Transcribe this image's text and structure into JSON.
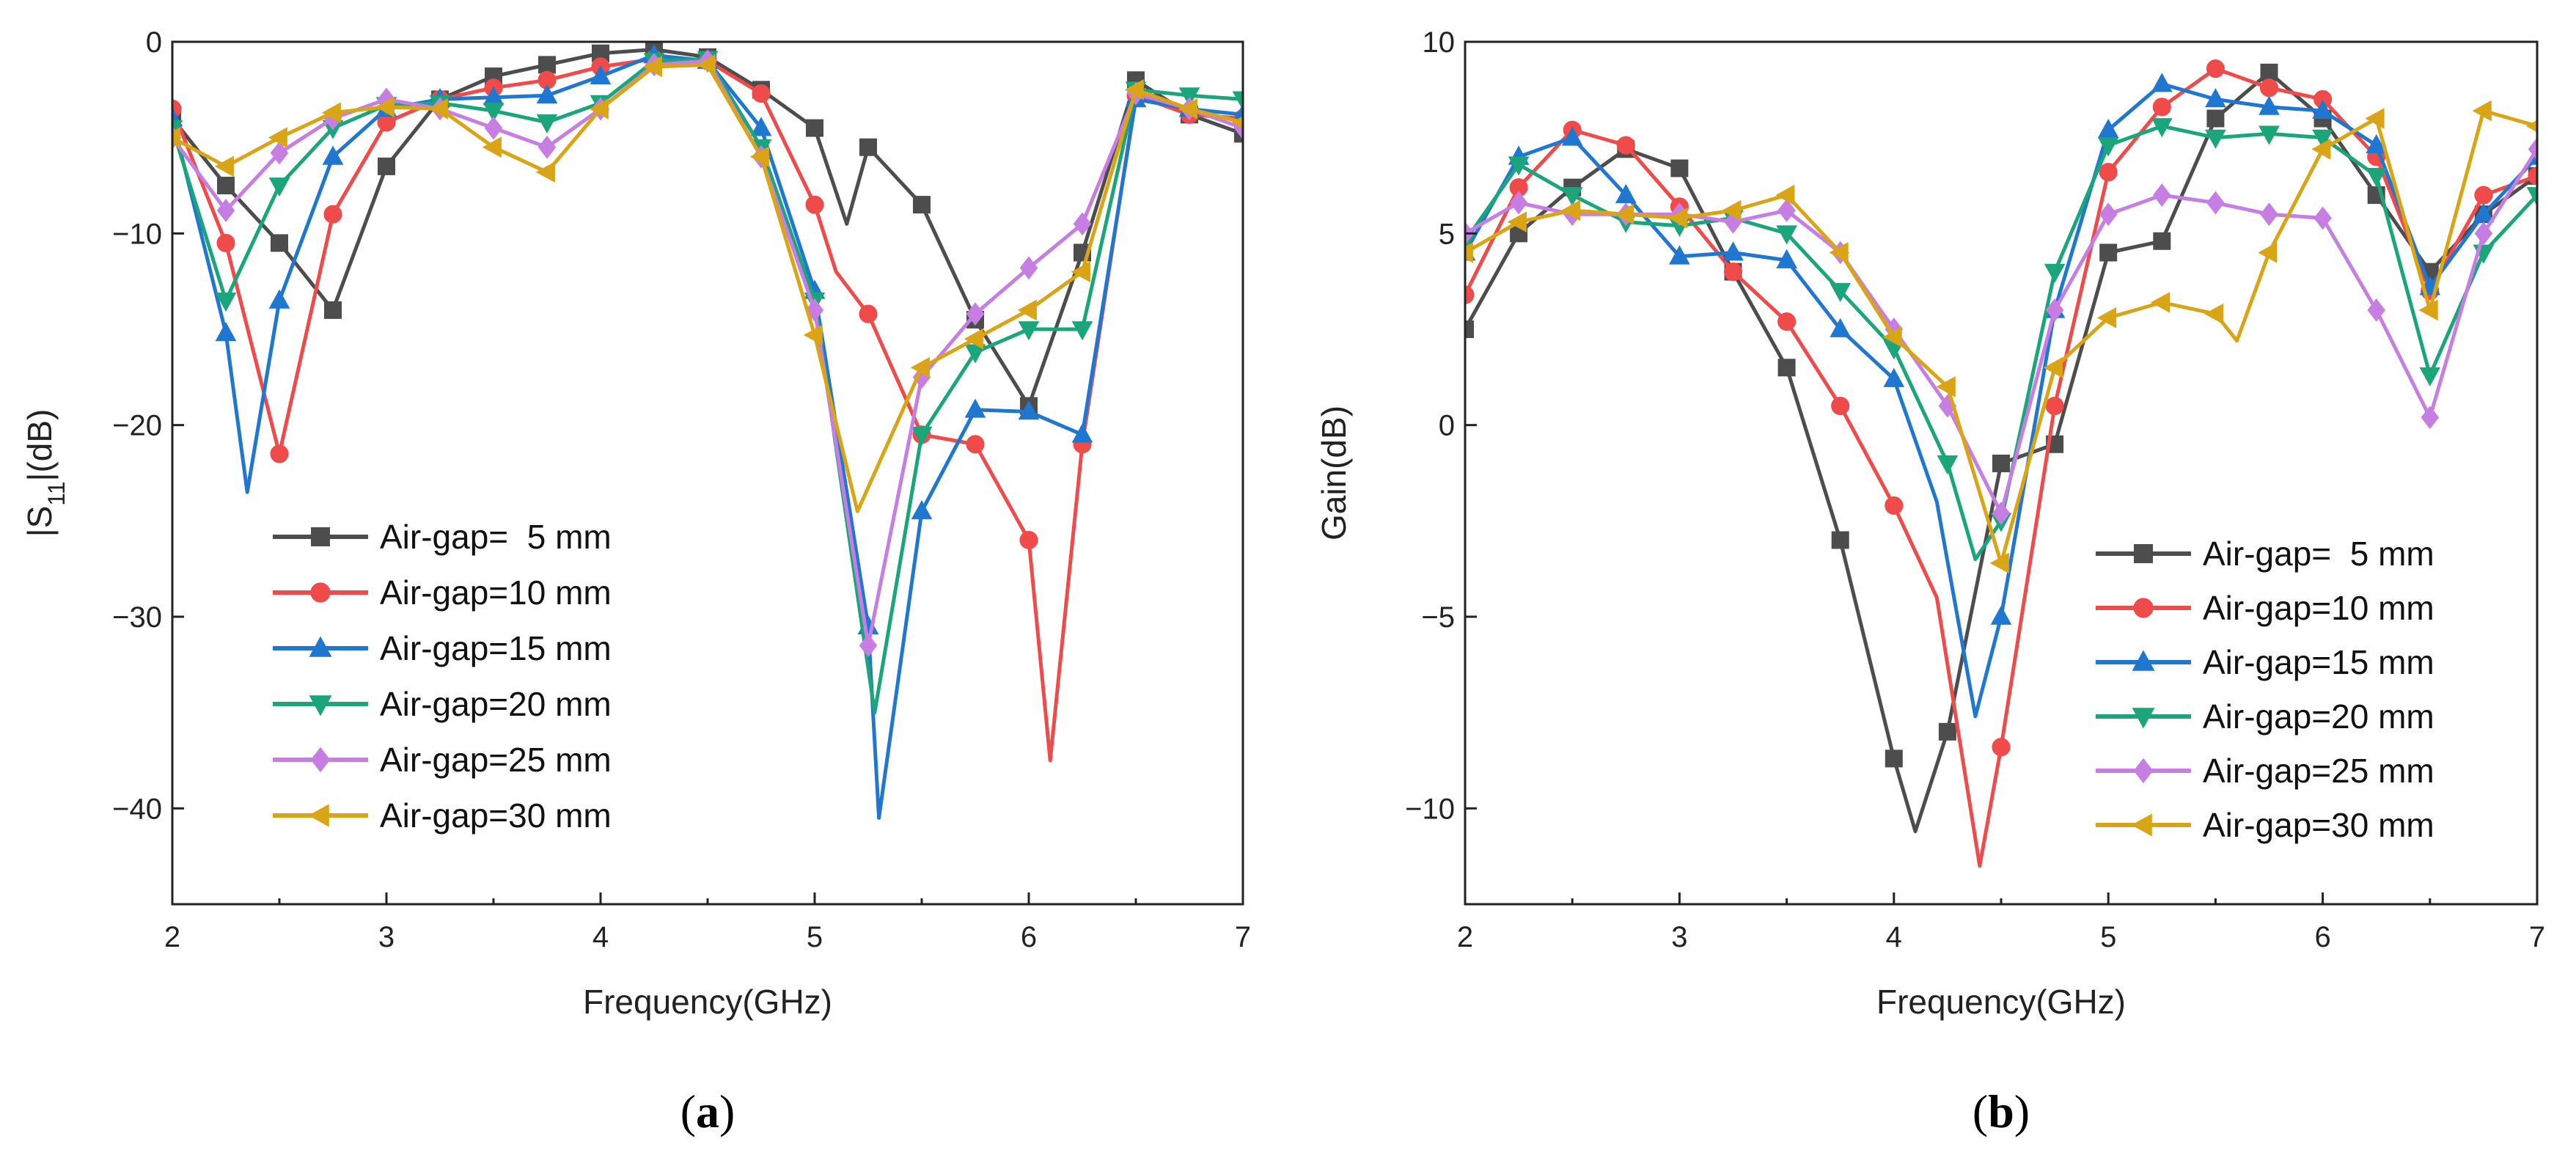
{
  "colors": {
    "Air-gap=  5 mm": "#4d4d4d",
    "Air-gap=10 mm": "#f04b4b",
    "Air-gap=15 mm": "#1f77d0",
    "Air-gap=20 mm": "#1aa67a",
    "Air-gap=25 mm": "#c77ee3",
    "Air-gap=30 mm": "#d9a416"
  },
  "chart_data": [
    {
      "id": "a",
      "type": "line",
      "caption": "a",
      "xlabel": "Frequency(GHz)",
      "ylabel": "|S11|(dB)",
      "ylabel_main": "|S",
      "ylabel_sub": "11",
      "ylabel_rest": "|(dB)",
      "xlim": [
        2,
        7
      ],
      "ylim": [
        -45,
        0
      ],
      "xticks": [
        2,
        3,
        4,
        5,
        6,
        7
      ],
      "yticks": [
        0,
        -10,
        -20,
        -30,
        -40
      ],
      "xtick_labels": [
        "2",
        "3",
        "4",
        "5",
        "6",
        "7"
      ],
      "ytick_labels": [
        "0",
        "−10",
        "−20",
        "−30",
        "−40"
      ],
      "legend": "bottom-left",
      "series": [
        {
          "name": "Air-gap=  5 mm",
          "marker": "square",
          "x": [
            2.0,
            2.25,
            2.5,
            2.75,
            3.0,
            3.25,
            3.5,
            3.75,
            4.0,
            4.25,
            4.5,
            4.75,
            5.0,
            5.15,
            5.25,
            5.5,
            5.75,
            6.0,
            6.25,
            6.5,
            6.75,
            7.0
          ],
          "y": [
            -4.0,
            -7.5,
            -10.5,
            -14.0,
            -6.5,
            -3.0,
            -1.8,
            -1.2,
            -0.6,
            -0.4,
            -0.8,
            -2.5,
            -4.5,
            -9.5,
            -5.5,
            -8.5,
            -14.5,
            -19.0,
            -11.0,
            -2.0,
            -3.8,
            -4.8
          ]
        },
        {
          "name": "Air-gap=10 mm",
          "marker": "circle",
          "x": [
            2.0,
            2.25,
            2.5,
            2.75,
            3.0,
            3.25,
            3.5,
            3.75,
            4.0,
            4.25,
            4.5,
            4.75,
            5.0,
            5.1,
            5.25,
            5.5,
            5.75,
            6.0,
            6.1,
            6.25,
            6.5,
            6.75,
            7.0
          ],
          "y": [
            -3.5,
            -10.5,
            -21.5,
            -9.0,
            -4.2,
            -3.0,
            -2.4,
            -2.0,
            -1.3,
            -0.9,
            -1.0,
            -2.7,
            -8.5,
            -12.0,
            -14.2,
            -20.5,
            -21.0,
            -26.0,
            -37.5,
            -21.0,
            -2.8,
            -3.8,
            -4.0
          ]
        },
        {
          "name": "Air-gap=15 mm",
          "marker": "triangle-up",
          "x": [
            2.0,
            2.25,
            2.35,
            2.5,
            2.75,
            3.0,
            3.25,
            3.5,
            3.75,
            4.0,
            4.25,
            4.5,
            4.75,
            5.0,
            5.25,
            5.3,
            5.5,
            5.75,
            6.0,
            6.25,
            6.5,
            6.75,
            7.0
          ],
          "y": [
            -4.0,
            -15.2,
            -23.5,
            -13.5,
            -6.0,
            -3.5,
            -3.0,
            -2.9,
            -2.8,
            -1.8,
            -0.7,
            -1.0,
            -4.5,
            -13.0,
            -30.5,
            -40.5,
            -24.5,
            -19.2,
            -19.3,
            -20.5,
            -3.0,
            -3.5,
            -3.8
          ]
        },
        {
          "name": "Air-gap=20 mm",
          "marker": "triangle-down",
          "x": [
            2.0,
            2.25,
            2.5,
            2.75,
            3.0,
            3.25,
            3.5,
            3.75,
            4.0,
            4.25,
            4.5,
            4.75,
            5.0,
            5.28,
            5.5,
            5.75,
            6.0,
            6.25,
            6.5,
            6.75,
            7.0
          ],
          "y": [
            -4.5,
            -13.5,
            -7.5,
            -4.5,
            -3.3,
            -3.2,
            -3.6,
            -4.2,
            -3.2,
            -1.0,
            -0.9,
            -5.5,
            -13.5,
            -35.0,
            -20.5,
            -16.2,
            -15.0,
            -15.0,
            -2.5,
            -2.8,
            -3.0
          ]
        },
        {
          "name": "Air-gap=25 mm",
          "marker": "diamond",
          "x": [
            2.0,
            2.25,
            2.5,
            2.75,
            3.0,
            3.25,
            3.5,
            3.75,
            4.0,
            4.25,
            4.5,
            4.75,
            5.0,
            5.25,
            5.5,
            5.75,
            6.0,
            6.25,
            6.5,
            6.75,
            7.0
          ],
          "y": [
            -5.0,
            -8.8,
            -5.8,
            -4.0,
            -3.0,
            -3.5,
            -4.5,
            -5.5,
            -3.5,
            -1.2,
            -1.0,
            -6.0,
            -14.0,
            -31.5,
            -17.5,
            -14.2,
            -11.8,
            -9.5,
            -2.7,
            -3.5,
            -4.5
          ]
        },
        {
          "name": "Air-gap=30 mm",
          "marker": "triangle-left",
          "x": [
            2.0,
            2.25,
            2.5,
            2.75,
            3.0,
            3.25,
            3.5,
            3.75,
            4.0,
            4.25,
            4.5,
            4.75,
            5.0,
            5.2,
            5.5,
            5.75,
            6.0,
            6.25,
            6.5,
            6.75,
            7.0
          ],
          "y": [
            -5.0,
            -6.5,
            -5.0,
            -3.7,
            -3.4,
            -3.5,
            -5.5,
            -6.8,
            -3.5,
            -1.3,
            -1.2,
            -6.0,
            -15.3,
            -24.5,
            -17.0,
            -15.5,
            -14.0,
            -12.0,
            -2.5,
            -3.5,
            -4.2
          ]
        }
      ]
    },
    {
      "id": "b",
      "type": "line",
      "caption": "b",
      "xlabel": "Frequency(GHz)",
      "ylabel": "Gain(dB)",
      "xlim": [
        2,
        7
      ],
      "ylim": [
        -12.5,
        10
      ],
      "xticks": [
        2,
        3,
        4,
        5,
        6,
        7
      ],
      "yticks": [
        10,
        5,
        0,
        -5,
        -10
      ],
      "xtick_labels": [
        "2",
        "3",
        "4",
        "5",
        "6",
        "7"
      ],
      "ytick_labels": [
        "10",
        "5",
        "0",
        "−5",
        "−10"
      ],
      "legend": "bottom-right",
      "series": [
        {
          "name": "Air-gap=  5 mm",
          "marker": "square",
          "x": [
            2.0,
            2.25,
            2.5,
            2.75,
            3.0,
            3.25,
            3.5,
            3.75,
            4.0,
            4.1,
            4.25,
            4.5,
            4.75,
            5.0,
            5.25,
            5.5,
            5.75,
            6.0,
            6.25,
            6.5,
            6.75,
            7.0
          ],
          "y": [
            2.5,
            5.0,
            6.2,
            7.2,
            6.7,
            4.0,
            1.5,
            -3.0,
            -8.7,
            -10.6,
            -8.0,
            -1.0,
            -0.5,
            4.5,
            4.8,
            8.0,
            9.2,
            8.0,
            6.0,
            4.0,
            5.5,
            6.5
          ]
        },
        {
          "name": "Air-gap=10 mm",
          "marker": "circle",
          "x": [
            2.0,
            2.25,
            2.5,
            2.75,
            3.0,
            3.25,
            3.5,
            3.75,
            4.0,
            4.2,
            4.4,
            4.5,
            4.75,
            5.0,
            5.25,
            5.5,
            5.75,
            6.0,
            6.25,
            6.5,
            6.75,
            7.0
          ],
          "y": [
            3.4,
            6.2,
            7.7,
            7.3,
            5.7,
            4.0,
            2.7,
            0.5,
            -2.1,
            -4.5,
            -11.5,
            -8.4,
            0.5,
            6.6,
            8.3,
            9.3,
            8.8,
            8.5,
            7.0,
            3.5,
            6.0,
            6.5
          ]
        },
        {
          "name": "Air-gap=15 mm",
          "marker": "triangle-up",
          "x": [
            2.0,
            2.25,
            2.5,
            2.75,
            3.0,
            3.25,
            3.5,
            3.75,
            4.0,
            4.2,
            4.38,
            4.5,
            4.75,
            5.0,
            5.25,
            5.5,
            5.75,
            6.0,
            6.25,
            6.5,
            6.75,
            7.0
          ],
          "y": [
            4.5,
            7.0,
            7.5,
            6.0,
            4.4,
            4.5,
            4.3,
            2.5,
            1.2,
            -2.0,
            -7.6,
            -5.0,
            3.0,
            7.7,
            8.9,
            8.5,
            8.3,
            8.2,
            7.3,
            3.6,
            5.5,
            7.0
          ]
        },
        {
          "name": "Air-gap=20 mm",
          "marker": "triangle-down",
          "x": [
            2.0,
            2.25,
            2.5,
            2.75,
            3.0,
            3.25,
            3.5,
            3.75,
            4.0,
            4.25,
            4.38,
            4.5,
            4.75,
            5.0,
            5.25,
            5.5,
            5.75,
            6.0,
            6.25,
            6.5,
            6.75,
            7.0
          ],
          "y": [
            4.8,
            6.8,
            6.0,
            5.3,
            5.2,
            5.4,
            5.0,
            3.5,
            2.0,
            -1.0,
            -3.5,
            -2.5,
            4.0,
            7.3,
            7.8,
            7.5,
            7.6,
            7.5,
            6.5,
            1.3,
            4.5,
            6.0
          ]
        },
        {
          "name": "Air-gap=25 mm",
          "marker": "diamond",
          "x": [
            2.0,
            2.25,
            2.5,
            2.75,
            3.0,
            3.25,
            3.5,
            3.75,
            4.0,
            4.25,
            4.5,
            4.75,
            5.0,
            5.25,
            5.5,
            5.75,
            6.0,
            6.25,
            6.5,
            6.75,
            7.0
          ],
          "y": [
            5.0,
            5.8,
            5.5,
            5.5,
            5.5,
            5.3,
            5.6,
            4.5,
            2.5,
            0.5,
            -2.3,
            3.0,
            5.5,
            6.0,
            5.8,
            5.5,
            5.4,
            3.0,
            0.2,
            5.0,
            7.2
          ]
        },
        {
          "name": "Air-gap=30 mm",
          "marker": "triangle-left",
          "x": [
            2.0,
            2.25,
            2.5,
            2.75,
            3.0,
            3.25,
            3.5,
            3.75,
            4.0,
            4.25,
            4.5,
            4.75,
            5.0,
            5.25,
            5.5,
            5.6,
            5.75,
            6.0,
            6.25,
            6.5,
            6.75,
            7.0
          ],
          "y": [
            4.5,
            5.3,
            5.6,
            5.5,
            5.4,
            5.6,
            6.0,
            4.5,
            2.3,
            1.0,
            -3.6,
            1.5,
            2.8,
            3.2,
            2.9,
            2.2,
            4.5,
            7.2,
            8.0,
            3.0,
            8.2,
            7.8
          ]
        }
      ]
    }
  ]
}
